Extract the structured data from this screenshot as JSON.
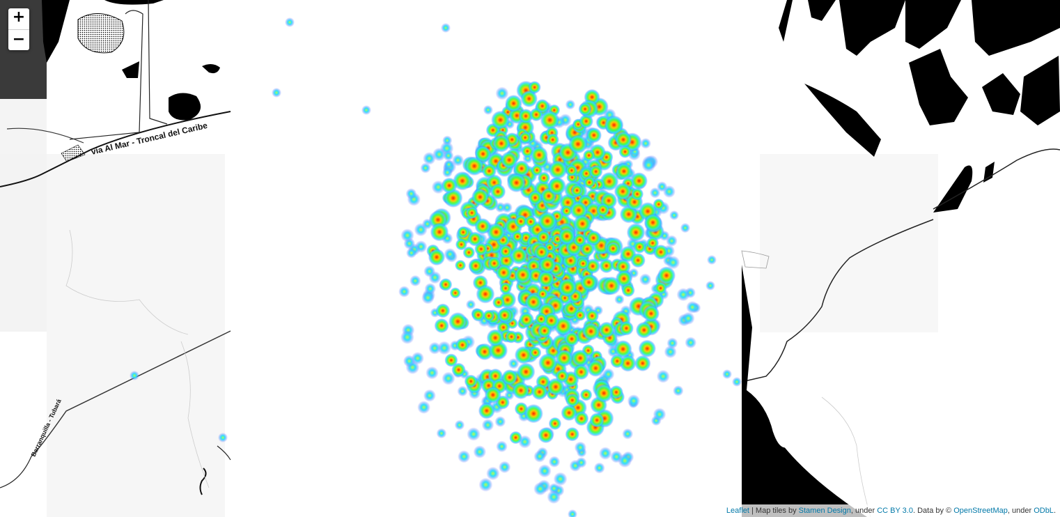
{
  "map": {
    "zoom_in_label": "+",
    "zoom_out_label": "−",
    "road_labels": {
      "troncal": "vía Al Mar - Troncal del Caribe",
      "tubara": "Barranquilla - Tubará"
    },
    "attribution": {
      "leaflet": "Leaflet",
      "sep": " | Map tiles by ",
      "stamen": "Stamen Design",
      "under1": ", under ",
      "ccby": "CC BY 3.0",
      "data_by": ". Data by © ",
      "osm": "OpenStreetMap",
      "under2": ", under ",
      "odbl": "ODbL",
      "end": "."
    }
  },
  "heatmap": {
    "gradient": [
      "#3f5cff",
      "#00e5ff",
      "#4cff4c",
      "#ffe800",
      "#ff2a00"
    ],
    "base_tile_color": "#000000",
    "land_tile_color": "#f7f7f7"
  }
}
